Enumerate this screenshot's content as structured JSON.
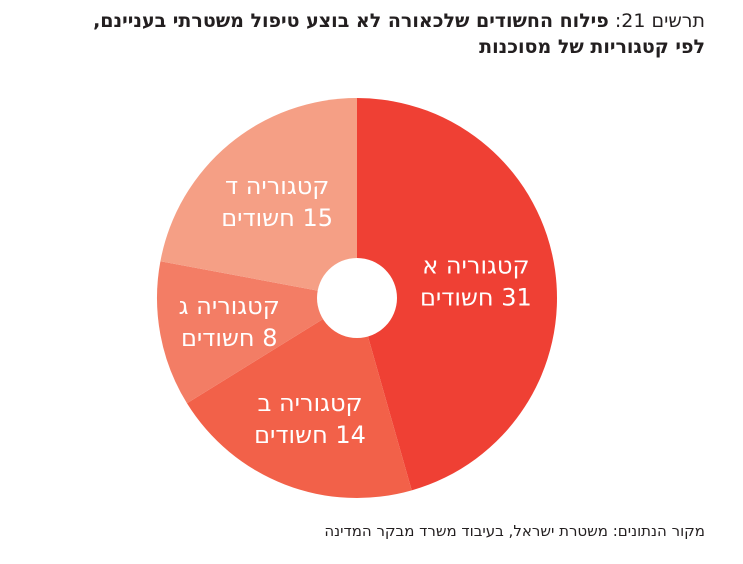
{
  "header": {
    "figure_label": "תרשים 21:",
    "title_line1": "פילוח החשודים שלכאורה לא בוצע טיפול משטרתי בעניינם,",
    "title_line2": "לפי קטגוריות של מסוכנות"
  },
  "source": "מקור הנתונים: משטרת ישראל, בעיבוד משרד מבקר המדינה",
  "chart_data": {
    "type": "pie",
    "title": "פילוח החשודים שלכאורה לא בוצע טיפול משטרתי בעניינם, לפי קטגוריות של מסוכנות",
    "categories": [
      "קטגוריה א",
      "קטגוריה ב",
      "קטגוריה ג",
      "קטגוריה ד"
    ],
    "values": [
      31,
      14,
      8,
      15
    ],
    "value_labels": [
      "31 חשודים",
      "14 חשודים",
      "8 חשודים",
      "15 חשודים"
    ],
    "colors": [
      "#ef4034",
      "#f26149",
      "#f37d65",
      "#f59f85"
    ],
    "donut": true
  }
}
